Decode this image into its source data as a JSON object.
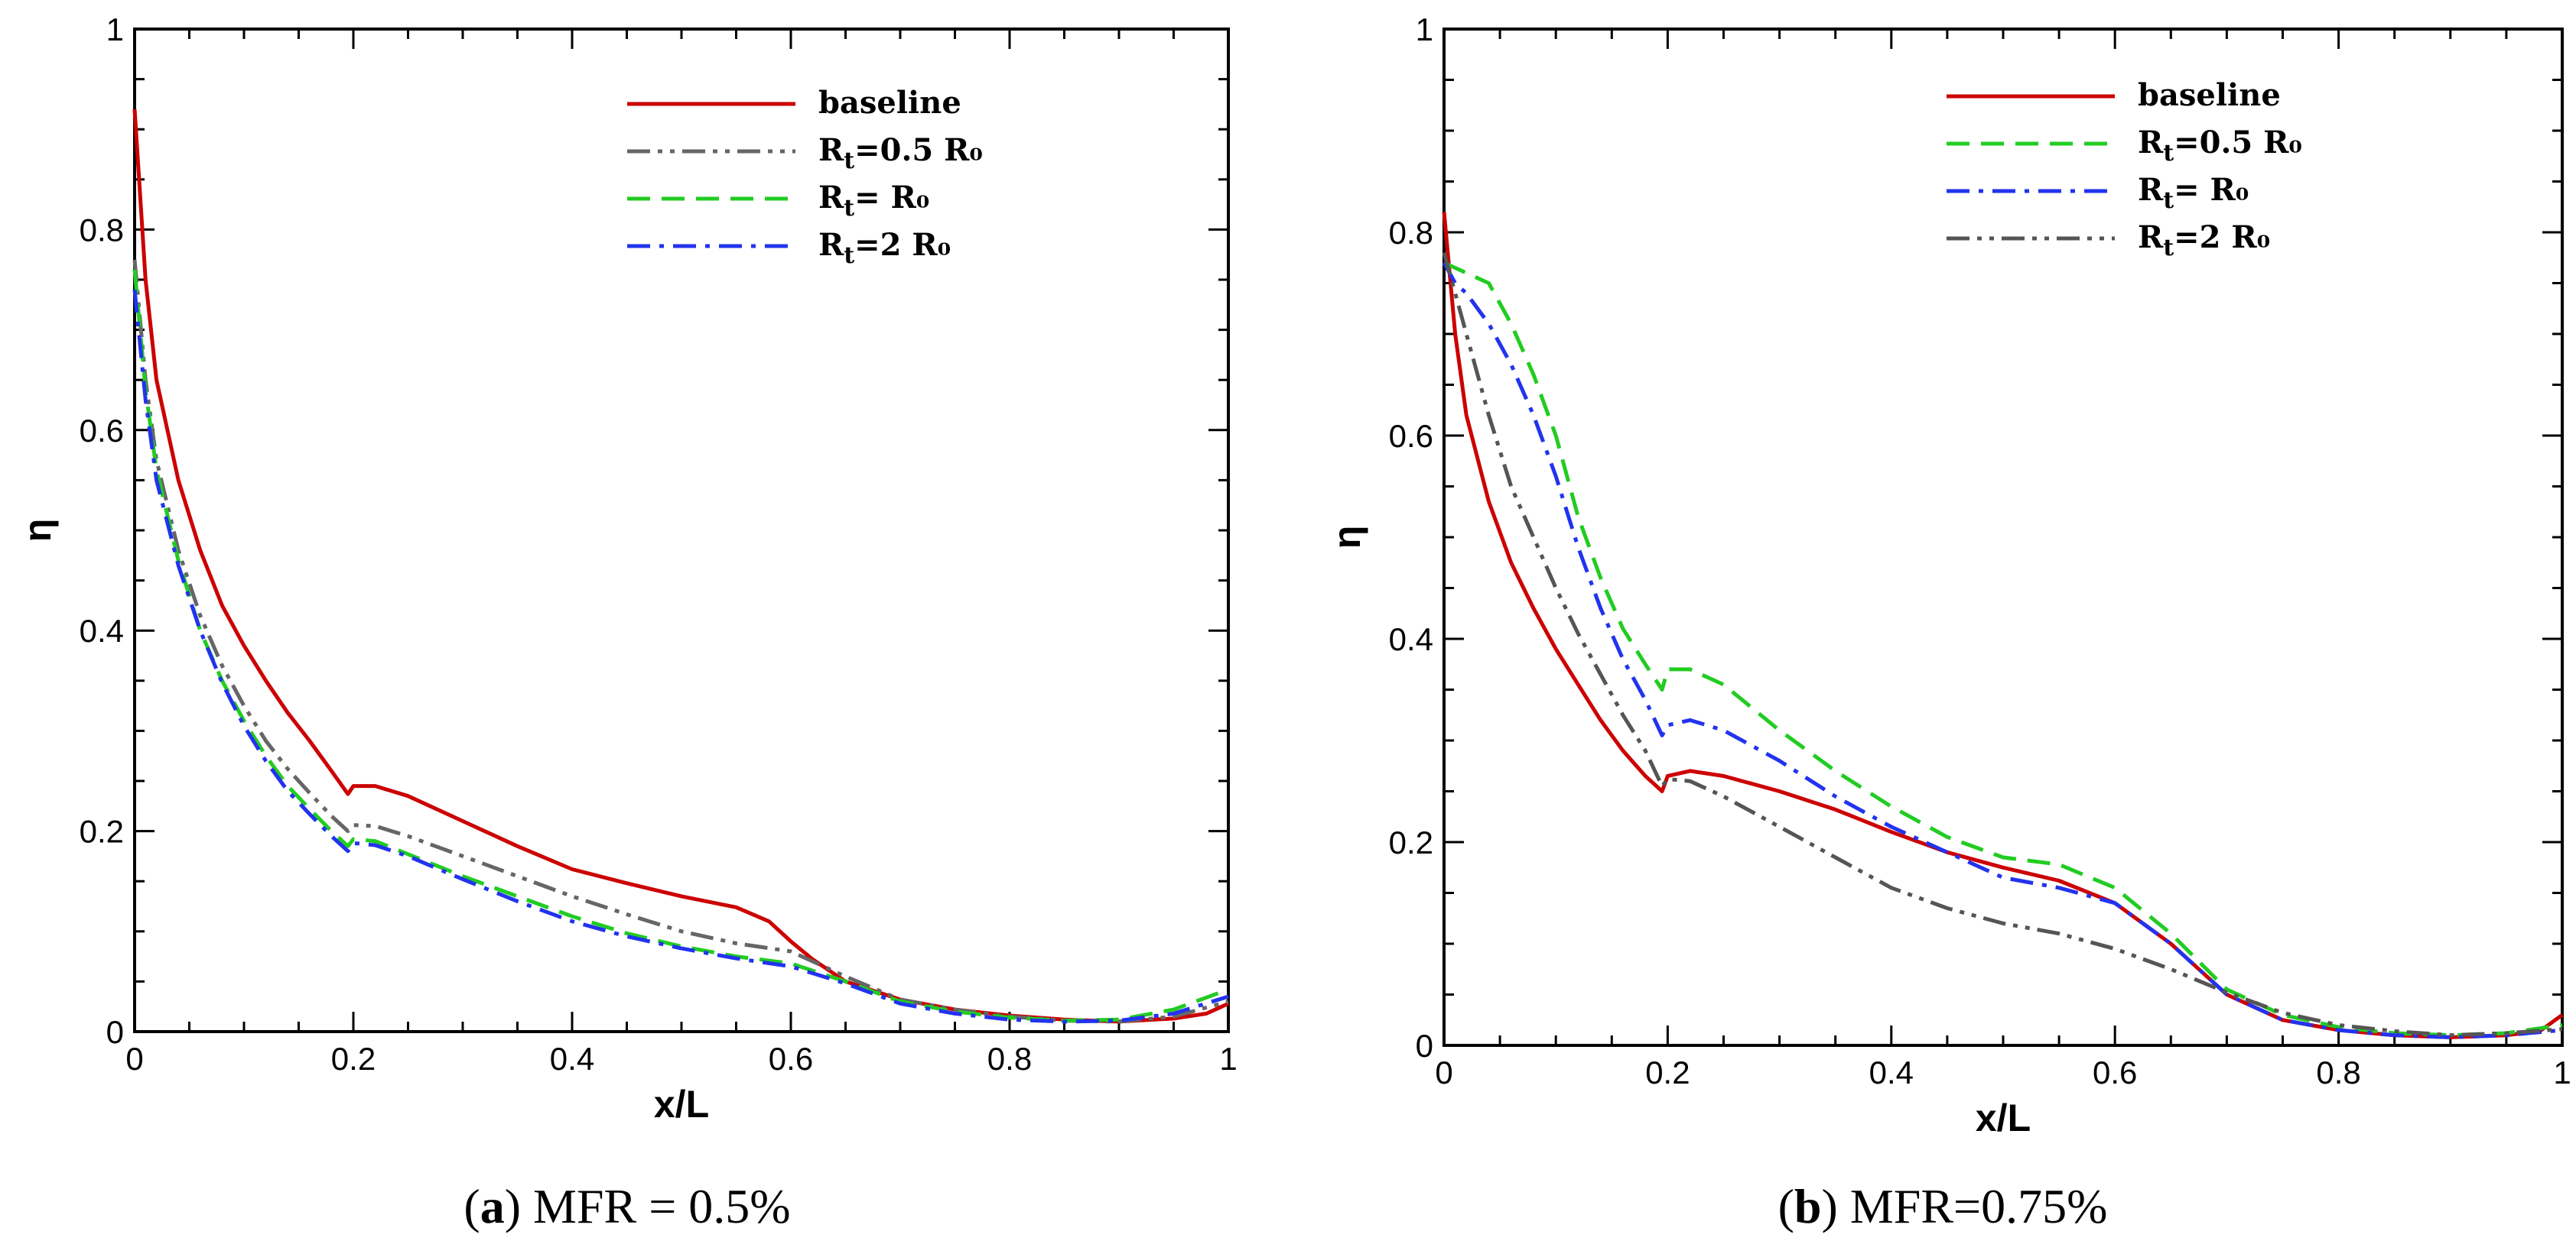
{
  "chart_data": [
    {
      "type": "line",
      "panel_label": "a",
      "caption": "MFR = 0.5%",
      "xlabel": "x/L",
      "ylabel": "η",
      "xlim": [
        0,
        1
      ],
      "ylim": [
        0,
        1
      ],
      "x_ticks": [
        0,
        0.2,
        0.4,
        0.6,
        0.8,
        1
      ],
      "y_ticks": [
        0,
        0.2,
        0.4,
        0.6,
        0.8,
        1
      ],
      "x_tick_labels": [
        "0",
        "0.2",
        "0.4",
        "0.6",
        "0.8",
        "1"
      ],
      "y_tick_labels": [
        "0",
        "0.2",
        "0.4",
        "0.6",
        "0.8",
        "1"
      ],
      "legend_position": "top-right",
      "series": [
        {
          "name": "baseline",
          "label_base": "baseline",
          "label_sub": "",
          "label_rest": "",
          "color": "#cc0000",
          "dash": "solid",
          "x": [
            0,
            0.01,
            0.02,
            0.04,
            0.06,
            0.08,
            0.1,
            0.12,
            0.14,
            0.16,
            0.18,
            0.195,
            0.2,
            0.22,
            0.25,
            0.3,
            0.35,
            0.4,
            0.45,
            0.5,
            0.55,
            0.58,
            0.6,
            0.62,
            0.65,
            0.7,
            0.75,
            0.8,
            0.85,
            0.9,
            0.95,
            0.98,
            1.0
          ],
          "y": [
            0.92,
            0.75,
            0.65,
            0.55,
            0.48,
            0.425,
            0.385,
            0.35,
            0.318,
            0.29,
            0.26,
            0.237,
            0.245,
            0.245,
            0.235,
            0.21,
            0.185,
            0.162,
            0.148,
            0.135,
            0.124,
            0.11,
            0.09,
            0.072,
            0.05,
            0.032,
            0.022,
            0.016,
            0.012,
            0.01,
            0.013,
            0.018,
            0.028
          ]
        },
        {
          "name": "Rt=0.5 R0",
          "label_base": "R",
          "label_sub": "t",
          "label_rest": "=0.5 R₀",
          "color": "#666666",
          "dash": "dashdotdot",
          "x": [
            0,
            0.01,
            0.02,
            0.04,
            0.06,
            0.08,
            0.1,
            0.12,
            0.14,
            0.16,
            0.18,
            0.195,
            0.2,
            0.22,
            0.25,
            0.3,
            0.35,
            0.4,
            0.45,
            0.5,
            0.55,
            0.6,
            0.65,
            0.7,
            0.75,
            0.8,
            0.85,
            0.9,
            0.95,
            1.0
          ],
          "y": [
            0.77,
            0.65,
            0.57,
            0.48,
            0.415,
            0.365,
            0.325,
            0.29,
            0.262,
            0.238,
            0.215,
            0.2,
            0.206,
            0.205,
            0.195,
            0.175,
            0.155,
            0.135,
            0.117,
            0.1,
            0.088,
            0.08,
            0.055,
            0.032,
            0.022,
            0.015,
            0.011,
            0.01,
            0.015,
            0.03
          ]
        },
        {
          "name": "Rt= R0",
          "label_base": "R",
          "label_sub": "t",
          "label_rest": "= R₀",
          "color": "#22cc22",
          "dash": "dashed",
          "x": [
            0,
            0.01,
            0.02,
            0.04,
            0.06,
            0.08,
            0.1,
            0.12,
            0.14,
            0.16,
            0.18,
            0.195,
            0.2,
            0.22,
            0.25,
            0.3,
            0.35,
            0.4,
            0.45,
            0.5,
            0.55,
            0.6,
            0.65,
            0.7,
            0.75,
            0.8,
            0.85,
            0.9,
            0.95,
            1.0
          ],
          "y": [
            0.76,
            0.64,
            0.56,
            0.47,
            0.4,
            0.35,
            0.31,
            0.275,
            0.245,
            0.222,
            0.2,
            0.185,
            0.192,
            0.19,
            0.177,
            0.155,
            0.135,
            0.115,
            0.098,
            0.085,
            0.075,
            0.068,
            0.05,
            0.03,
            0.02,
            0.014,
            0.011,
            0.012,
            0.022,
            0.042
          ]
        },
        {
          "name": "Rt=2 R0",
          "label_base": "R",
          "label_sub": "t",
          "label_rest": "=2 R₀",
          "color": "#2233ee",
          "dash": "dashdot",
          "x": [
            0,
            0.01,
            0.02,
            0.04,
            0.06,
            0.08,
            0.1,
            0.12,
            0.14,
            0.16,
            0.18,
            0.195,
            0.2,
            0.22,
            0.25,
            0.3,
            0.35,
            0.4,
            0.45,
            0.5,
            0.55,
            0.6,
            0.65,
            0.7,
            0.75,
            0.8,
            0.85,
            0.9,
            0.95,
            1.0
          ],
          "y": [
            0.74,
            0.63,
            0.55,
            0.465,
            0.4,
            0.348,
            0.305,
            0.27,
            0.24,
            0.217,
            0.195,
            0.18,
            0.188,
            0.186,
            0.175,
            0.152,
            0.13,
            0.11,
            0.095,
            0.083,
            0.073,
            0.065,
            0.048,
            0.028,
            0.018,
            0.012,
            0.01,
            0.011,
            0.018,
            0.035
          ]
        }
      ]
    },
    {
      "type": "line",
      "panel_label": "b",
      "caption": "MFR=0.75%",
      "xlabel": "x/L",
      "ylabel": "η",
      "xlim": [
        0,
        1
      ],
      "ylim": [
        0,
        1
      ],
      "x_ticks": [
        0,
        0.2,
        0.4,
        0.6,
        0.8,
        1
      ],
      "y_ticks": [
        0,
        0.2,
        0.4,
        0.6,
        0.8,
        1
      ],
      "x_tick_labels": [
        "0",
        "0.2",
        "0.4",
        "0.6",
        "0.8",
        "1"
      ],
      "y_tick_labels": [
        "0",
        "0.2",
        "0.4",
        "0.6",
        "0.8",
        "1"
      ],
      "legend_position": "top-right",
      "series": [
        {
          "name": "baseline",
          "label_base": "baseline",
          "label_sub": "",
          "label_rest": "",
          "color": "#cc0000",
          "dash": "solid",
          "x": [
            0,
            0.01,
            0.02,
            0.04,
            0.06,
            0.08,
            0.1,
            0.12,
            0.14,
            0.16,
            0.18,
            0.195,
            0.2,
            0.22,
            0.25,
            0.3,
            0.35,
            0.4,
            0.45,
            0.5,
            0.55,
            0.6,
            0.65,
            0.7,
            0.75,
            0.8,
            0.85,
            0.9,
            0.95,
            0.98,
            1.0
          ],
          "y": [
            0.82,
            0.7,
            0.62,
            0.535,
            0.475,
            0.43,
            0.39,
            0.355,
            0.32,
            0.29,
            0.265,
            0.25,
            0.265,
            0.27,
            0.265,
            0.25,
            0.232,
            0.21,
            0.19,
            0.175,
            0.162,
            0.14,
            0.1,
            0.05,
            0.025,
            0.015,
            0.01,
            0.008,
            0.01,
            0.014,
            0.03
          ]
        },
        {
          "name": "Rt=0.5 R0",
          "label_base": "R",
          "label_sub": "t",
          "label_rest": "=0.5 R₀",
          "color": "#22cc22",
          "dash": "dashed",
          "x": [
            0,
            0.01,
            0.02,
            0.04,
            0.06,
            0.08,
            0.1,
            0.12,
            0.14,
            0.16,
            0.18,
            0.195,
            0.2,
            0.22,
            0.25,
            0.3,
            0.35,
            0.4,
            0.45,
            0.5,
            0.55,
            0.6,
            0.65,
            0.7,
            0.75,
            0.8,
            0.85,
            0.9,
            0.95,
            1.0
          ],
          "y": [
            0.77,
            0.765,
            0.76,
            0.75,
            0.71,
            0.66,
            0.6,
            0.52,
            0.46,
            0.41,
            0.375,
            0.35,
            0.37,
            0.37,
            0.355,
            0.31,
            0.27,
            0.235,
            0.205,
            0.185,
            0.178,
            0.155,
            0.11,
            0.055,
            0.03,
            0.018,
            0.012,
            0.01,
            0.012,
            0.02
          ]
        },
        {
          "name": "Rt= R0",
          "label_base": "R",
          "label_sub": "t",
          "label_rest": "= R₀",
          "color": "#2233ee",
          "dash": "dashdot",
          "x": [
            0,
            0.01,
            0.02,
            0.04,
            0.06,
            0.08,
            0.1,
            0.12,
            0.14,
            0.16,
            0.18,
            0.195,
            0.2,
            0.22,
            0.25,
            0.3,
            0.35,
            0.4,
            0.45,
            0.5,
            0.55,
            0.6,
            0.65,
            0.7,
            0.75,
            0.8,
            0.85,
            0.9,
            0.95,
            1.0
          ],
          "y": [
            0.77,
            0.75,
            0.74,
            0.71,
            0.67,
            0.62,
            0.56,
            0.49,
            0.43,
            0.38,
            0.34,
            0.305,
            0.315,
            0.32,
            0.31,
            0.28,
            0.245,
            0.215,
            0.19,
            0.165,
            0.155,
            0.14,
            0.1,
            0.05,
            0.025,
            0.015,
            0.01,
            0.008,
            0.01,
            0.015
          ]
        },
        {
          "name": "Rt=2 R0",
          "label_base": "R",
          "label_sub": "t",
          "label_rest": "=2 R₀",
          "color": "#555555",
          "dash": "dashdotdot",
          "x": [
            0,
            0.01,
            0.02,
            0.04,
            0.06,
            0.08,
            0.1,
            0.12,
            0.14,
            0.16,
            0.18,
            0.195,
            0.2,
            0.22,
            0.25,
            0.3,
            0.35,
            0.4,
            0.45,
            0.5,
            0.55,
            0.6,
            0.65,
            0.7,
            0.75,
            0.8,
            0.85,
            0.9,
            0.95,
            1.0
          ],
          "y": [
            0.78,
            0.74,
            0.7,
            0.62,
            0.55,
            0.5,
            0.45,
            0.405,
            0.365,
            0.325,
            0.29,
            0.255,
            0.262,
            0.26,
            0.245,
            0.215,
            0.185,
            0.155,
            0.135,
            0.12,
            0.11,
            0.095,
            0.075,
            0.052,
            0.032,
            0.02,
            0.014,
            0.01,
            0.012,
            0.016
          ]
        }
      ]
    }
  ]
}
